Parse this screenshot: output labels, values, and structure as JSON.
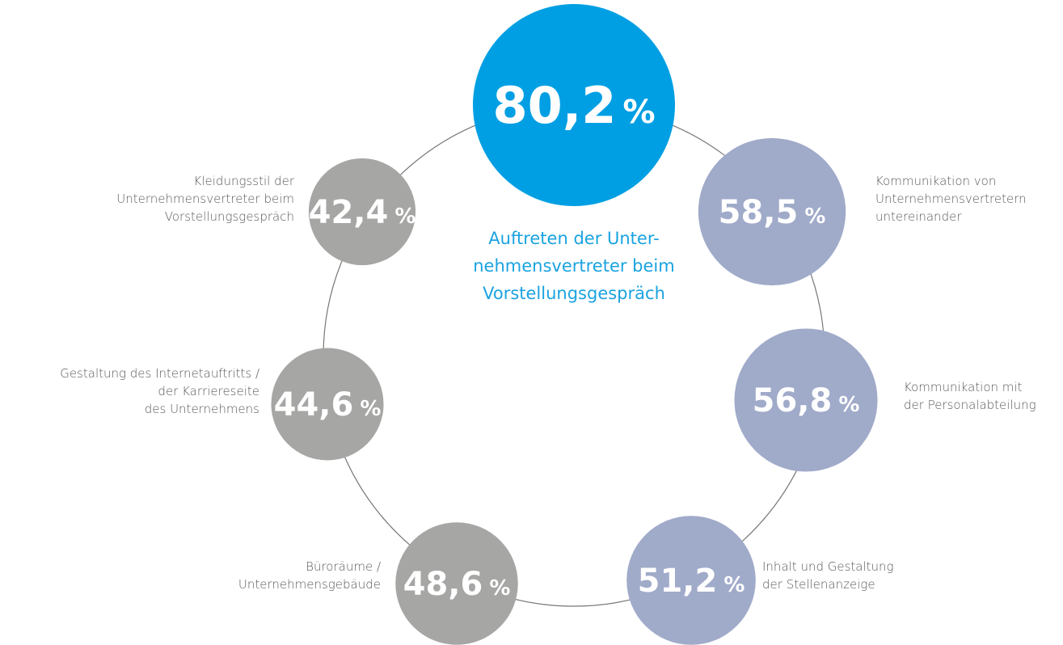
{
  "chart_data": {
    "type": "bubble",
    "categories": [
      [
        "Auftreten der Unter-",
        "nehmensvertreter beim",
        "Vorstellungsgespräch"
      ],
      [
        "Kommunikation von",
        "Unternehmensvertretern",
        "untereinander"
      ],
      [
        "Kommunikation mit",
        "der Personalabteilung"
      ],
      [
        "Inhalt und Gestaltung",
        "der Stellenanzeige"
      ],
      [
        "Büroräume /",
        "Unternehmensgebäude"
      ],
      [
        "Gestaltung des Internetauftritts /",
        "der Karriereseite",
        "des Unternehmens"
      ],
      [
        "Kleidungsstil der",
        "Unternehmensvertreter beim",
        "Vorstellungsgespräch"
      ]
    ],
    "values": [
      80.2,
      58.5,
      56.8,
      51.2,
      48.6,
      44.6,
      42.4
    ],
    "value_labels": [
      "80,2",
      "58,5",
      "56,8",
      "51,2",
      "48,6",
      "44,6",
      "42,4"
    ],
    "unit_label": "%",
    "colors": [
      "#009fe3",
      "#a0aac9",
      "#a0aac9",
      "#a0aac9",
      "#a6a6a5",
      "#a6a6a5",
      "#a6a6a5"
    ]
  }
}
